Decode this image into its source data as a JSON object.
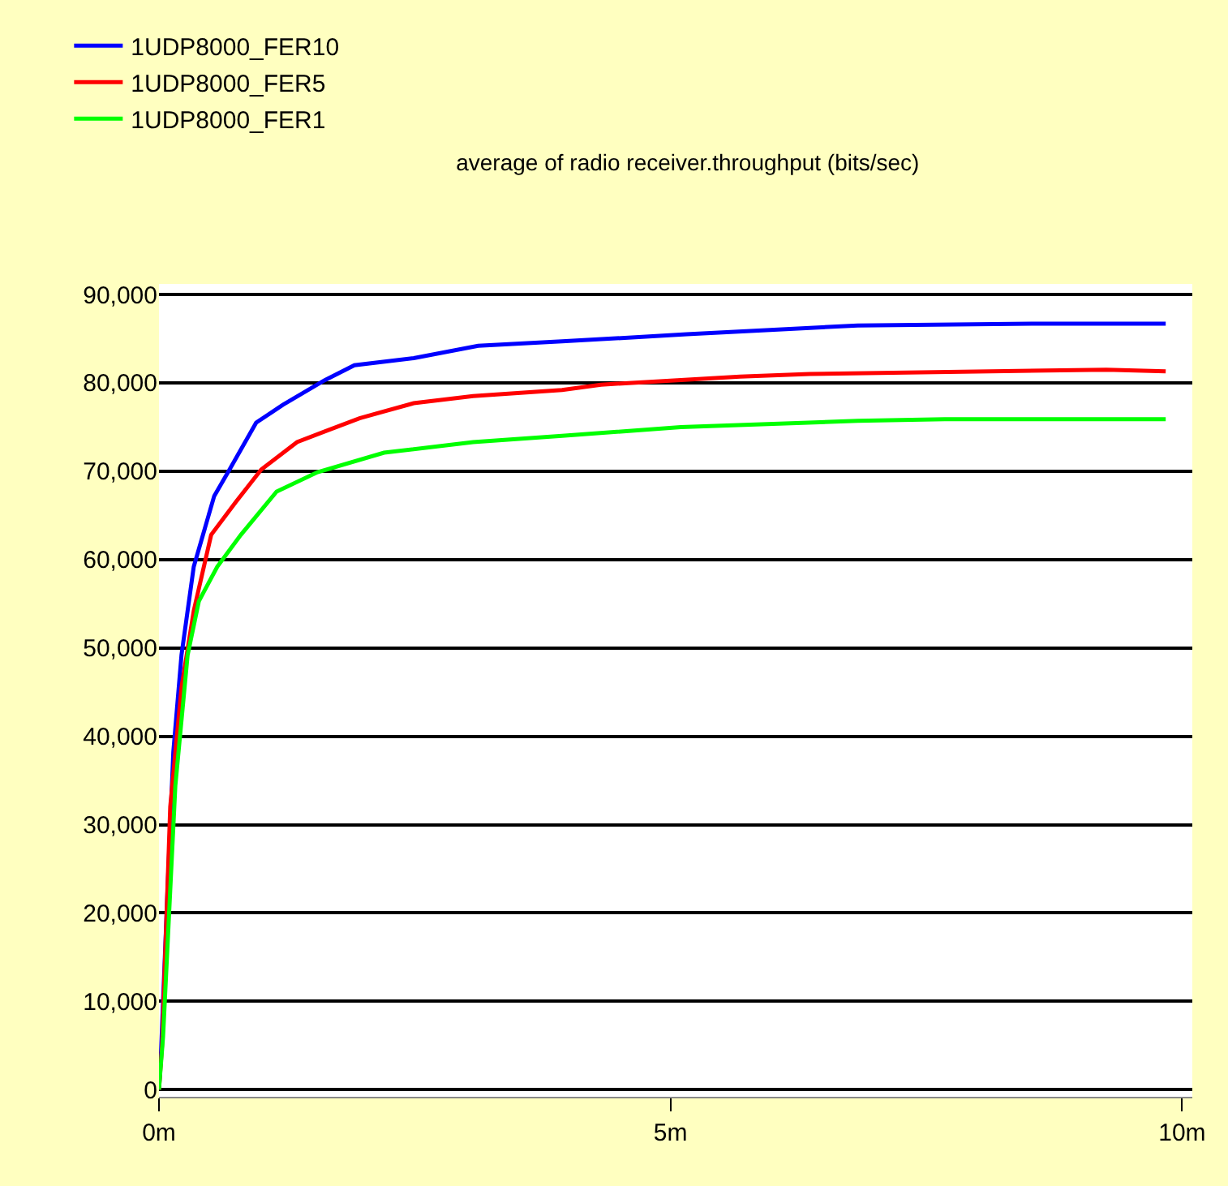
{
  "chart_data": {
    "type": "line",
    "title": "average of radio receiver.throughput (bits/sec)",
    "xlim": [
      0,
      10.1
    ],
    "ylim": [
      -800,
      91200
    ],
    "xticks": [
      {
        "value": 0,
        "label": "0m"
      },
      {
        "value": 5,
        "label": "5m"
      },
      {
        "value": 10,
        "label": "10m"
      }
    ],
    "yticks": [
      {
        "value": 0,
        "label": "0"
      },
      {
        "value": 10000,
        "label": "10,000"
      },
      {
        "value": 20000,
        "label": "20,000"
      },
      {
        "value": 30000,
        "label": "30,000"
      },
      {
        "value": 40000,
        "label": "40,000"
      },
      {
        "value": 50000,
        "label": "50,000"
      },
      {
        "value": 60000,
        "label": "60,000"
      },
      {
        "value": 70000,
        "label": "70,000"
      },
      {
        "value": 80000,
        "label": "80,000"
      },
      {
        "value": 90000,
        "label": "90,000"
      }
    ],
    "grid": "y",
    "legend": "top left",
    "marker": "none",
    "line_style": "solid",
    "series": [
      {
        "name": "1UDP8000_FER10",
        "color": "#0000ff",
        "x": [
          0,
          0.02,
          0.08,
          0.14,
          0.22,
          0.34,
          0.54,
          0.69,
          0.95,
          1.21,
          1.62,
          1.91,
          2.49,
          3.12,
          3.94,
          5.16,
          6.83,
          8.56,
          9.84
        ],
        "values": [
          0,
          4200,
          21500,
          38200,
          49200,
          59200,
          67200,
          70200,
          75500,
          77500,
          80300,
          82000,
          82800,
          84200,
          84700,
          85500,
          86500,
          86700,
          86700
        ]
      },
      {
        "name": "1UDP8000_FER5",
        "color": "#ff0000",
        "x": [
          0,
          0.03,
          0.11,
          0.22,
          0.34,
          0.51,
          0.75,
          1.0,
          1.35,
          1.62,
          1.96,
          2.49,
          3.07,
          3.94,
          4.32,
          5.68,
          6.36,
          9.26,
          9.84
        ],
        "values": [
          0,
          5000,
          32000,
          45500,
          54200,
          62800,
          66500,
          70200,
          73300,
          74500,
          76000,
          77700,
          78500,
          79200,
          79800,
          80700,
          81000,
          81500,
          81300
        ]
      },
      {
        "name": "1UDP8000_FER1",
        "color": "#00ff00",
        "x": [
          0,
          0.04,
          0.16,
          0.28,
          0.39,
          0.57,
          0.8,
          1.15,
          1.55,
          2.2,
          3.07,
          3.94,
          5.1,
          6.83,
          7.68,
          9.84
        ],
        "values": [
          0,
          6000,
          34400,
          49200,
          55300,
          59200,
          62800,
          67700,
          69900,
          72100,
          73300,
          74000,
          75000,
          75700,
          75900,
          75900
        ]
      }
    ]
  }
}
